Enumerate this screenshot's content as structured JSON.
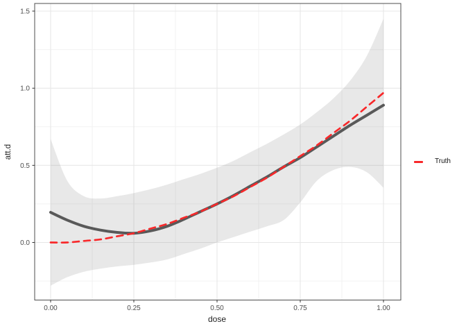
{
  "figure": {
    "background": "#ffffff",
    "accent_red": "#f8282a",
    "estimate_gray": "#595959",
    "ribbon_gray": "#e9e9e9"
  },
  "legend": {
    "items": [
      {
        "label": "Truth",
        "color": "#f8282a",
        "dashed": true
      }
    ]
  },
  "chart_data": {
    "type": "line",
    "title": "",
    "xlabel": "dose",
    "ylabel": "att.d",
    "xlim": [
      -0.048,
      1.052
    ],
    "ylim": [
      -0.373,
      1.55
    ],
    "grid": "major+minor",
    "legend_position": "right",
    "x_ticks": {
      "values": [
        0,
        0.25,
        0.5,
        0.75,
        1.0
      ],
      "labels": [
        "0.00",
        "0.25",
        "0.50",
        "0.75",
        "1.00"
      ]
    },
    "y_ticks": {
      "values": [
        0,
        0.5,
        1.0,
        1.5
      ],
      "labels": [
        "0.0",
        "0.5",
        "1.0",
        "1.5"
      ]
    },
    "x_minor": [
      0.125,
      0.375,
      0.625,
      0.875
    ],
    "y_minor": [
      -0.25,
      0.25,
      0.75,
      1.25
    ],
    "x": [
      0,
      0.05,
      0.1,
      0.15,
      0.2,
      0.25,
      0.3,
      0.35,
      0.4,
      0.45,
      0.5,
      0.55,
      0.6,
      0.65,
      0.7,
      0.75,
      0.8,
      0.85,
      0.9,
      0.95,
      1.0
    ],
    "series": [
      {
        "name": "estimate",
        "color": "#595959",
        "width": 4,
        "dash": null,
        "values": [
          0.195,
          0.145,
          0.105,
          0.08,
          0.065,
          0.06,
          0.075,
          0.105,
          0.15,
          0.2,
          0.25,
          0.305,
          0.365,
          0.425,
          0.49,
          0.55,
          0.62,
          0.69,
          0.76,
          0.825,
          0.89
        ]
      },
      {
        "name": "Truth",
        "color": "#f8282a",
        "width": 2.7,
        "dash": "9 7",
        "values": [
          0.0,
          0.0,
          0.01,
          0.02,
          0.04,
          0.06,
          0.09,
          0.12,
          0.16,
          0.2,
          0.25,
          0.3,
          0.36,
          0.42,
          0.49,
          0.56,
          0.63,
          0.71,
          0.79,
          0.88,
          0.97
        ]
      }
    ],
    "ribbon": {
      "fill": "rgba(125,125,125,0.18)",
      "upper": [
        0.67,
        0.4,
        0.3,
        0.285,
        0.3,
        0.32,
        0.345,
        0.375,
        0.41,
        0.445,
        0.485,
        0.53,
        0.585,
        0.64,
        0.7,
        0.765,
        0.845,
        0.935,
        1.05,
        1.21,
        1.45
      ],
      "lower": [
        -0.28,
        -0.225,
        -0.19,
        -0.17,
        -0.155,
        -0.145,
        -0.13,
        -0.11,
        -0.075,
        -0.04,
        0.0,
        0.035,
        0.07,
        0.105,
        0.145,
        0.26,
        0.4,
        0.47,
        0.49,
        0.455,
        0.355
      ]
    }
  }
}
